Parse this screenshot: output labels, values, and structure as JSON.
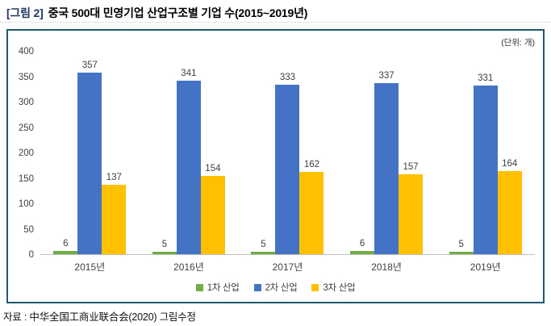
{
  "title": {
    "tag": "[그림 2]",
    "text": "중국 500대 민영기업 산업구조별 기업 수(2015~2019년)"
  },
  "unit_label": "(단위: 개)",
  "source": "자료 : 中华全国工商业联合会(2020) 그림수정",
  "colors": {
    "primary_industry": "#70AD47",
    "secondary_industry": "#4472C4",
    "tertiary_industry": "#FFC000",
    "box_border": "#1D5A6E",
    "title_tag": "#1F3864",
    "axis_line": "#BFBFBF"
  },
  "chart_data": {
    "type": "bar",
    "title": "중국 500대 민영기업 산업구조별 기업 수(2015~2019년)",
    "unit": "(단위: 개)",
    "categories": [
      "2015년",
      "2016년",
      "2017년",
      "2018년",
      "2019년"
    ],
    "series": [
      {
        "name": "1차 산업",
        "color": "#70AD47",
        "values": [
          6,
          5,
          5,
          6,
          5
        ]
      },
      {
        "name": "2차 산업",
        "color": "#4472C4",
        "values": [
          357,
          341,
          333,
          337,
          331
        ]
      },
      {
        "name": "3차 산업",
        "color": "#FFC000",
        "values": [
          137,
          154,
          162,
          157,
          164
        ]
      }
    ],
    "ylim": [
      0,
      400
    ],
    "yticks": [
      0,
      50,
      100,
      150,
      200,
      250,
      300,
      350,
      400
    ],
    "grid": false,
    "data_labels": true,
    "legend_position": "bottom"
  }
}
